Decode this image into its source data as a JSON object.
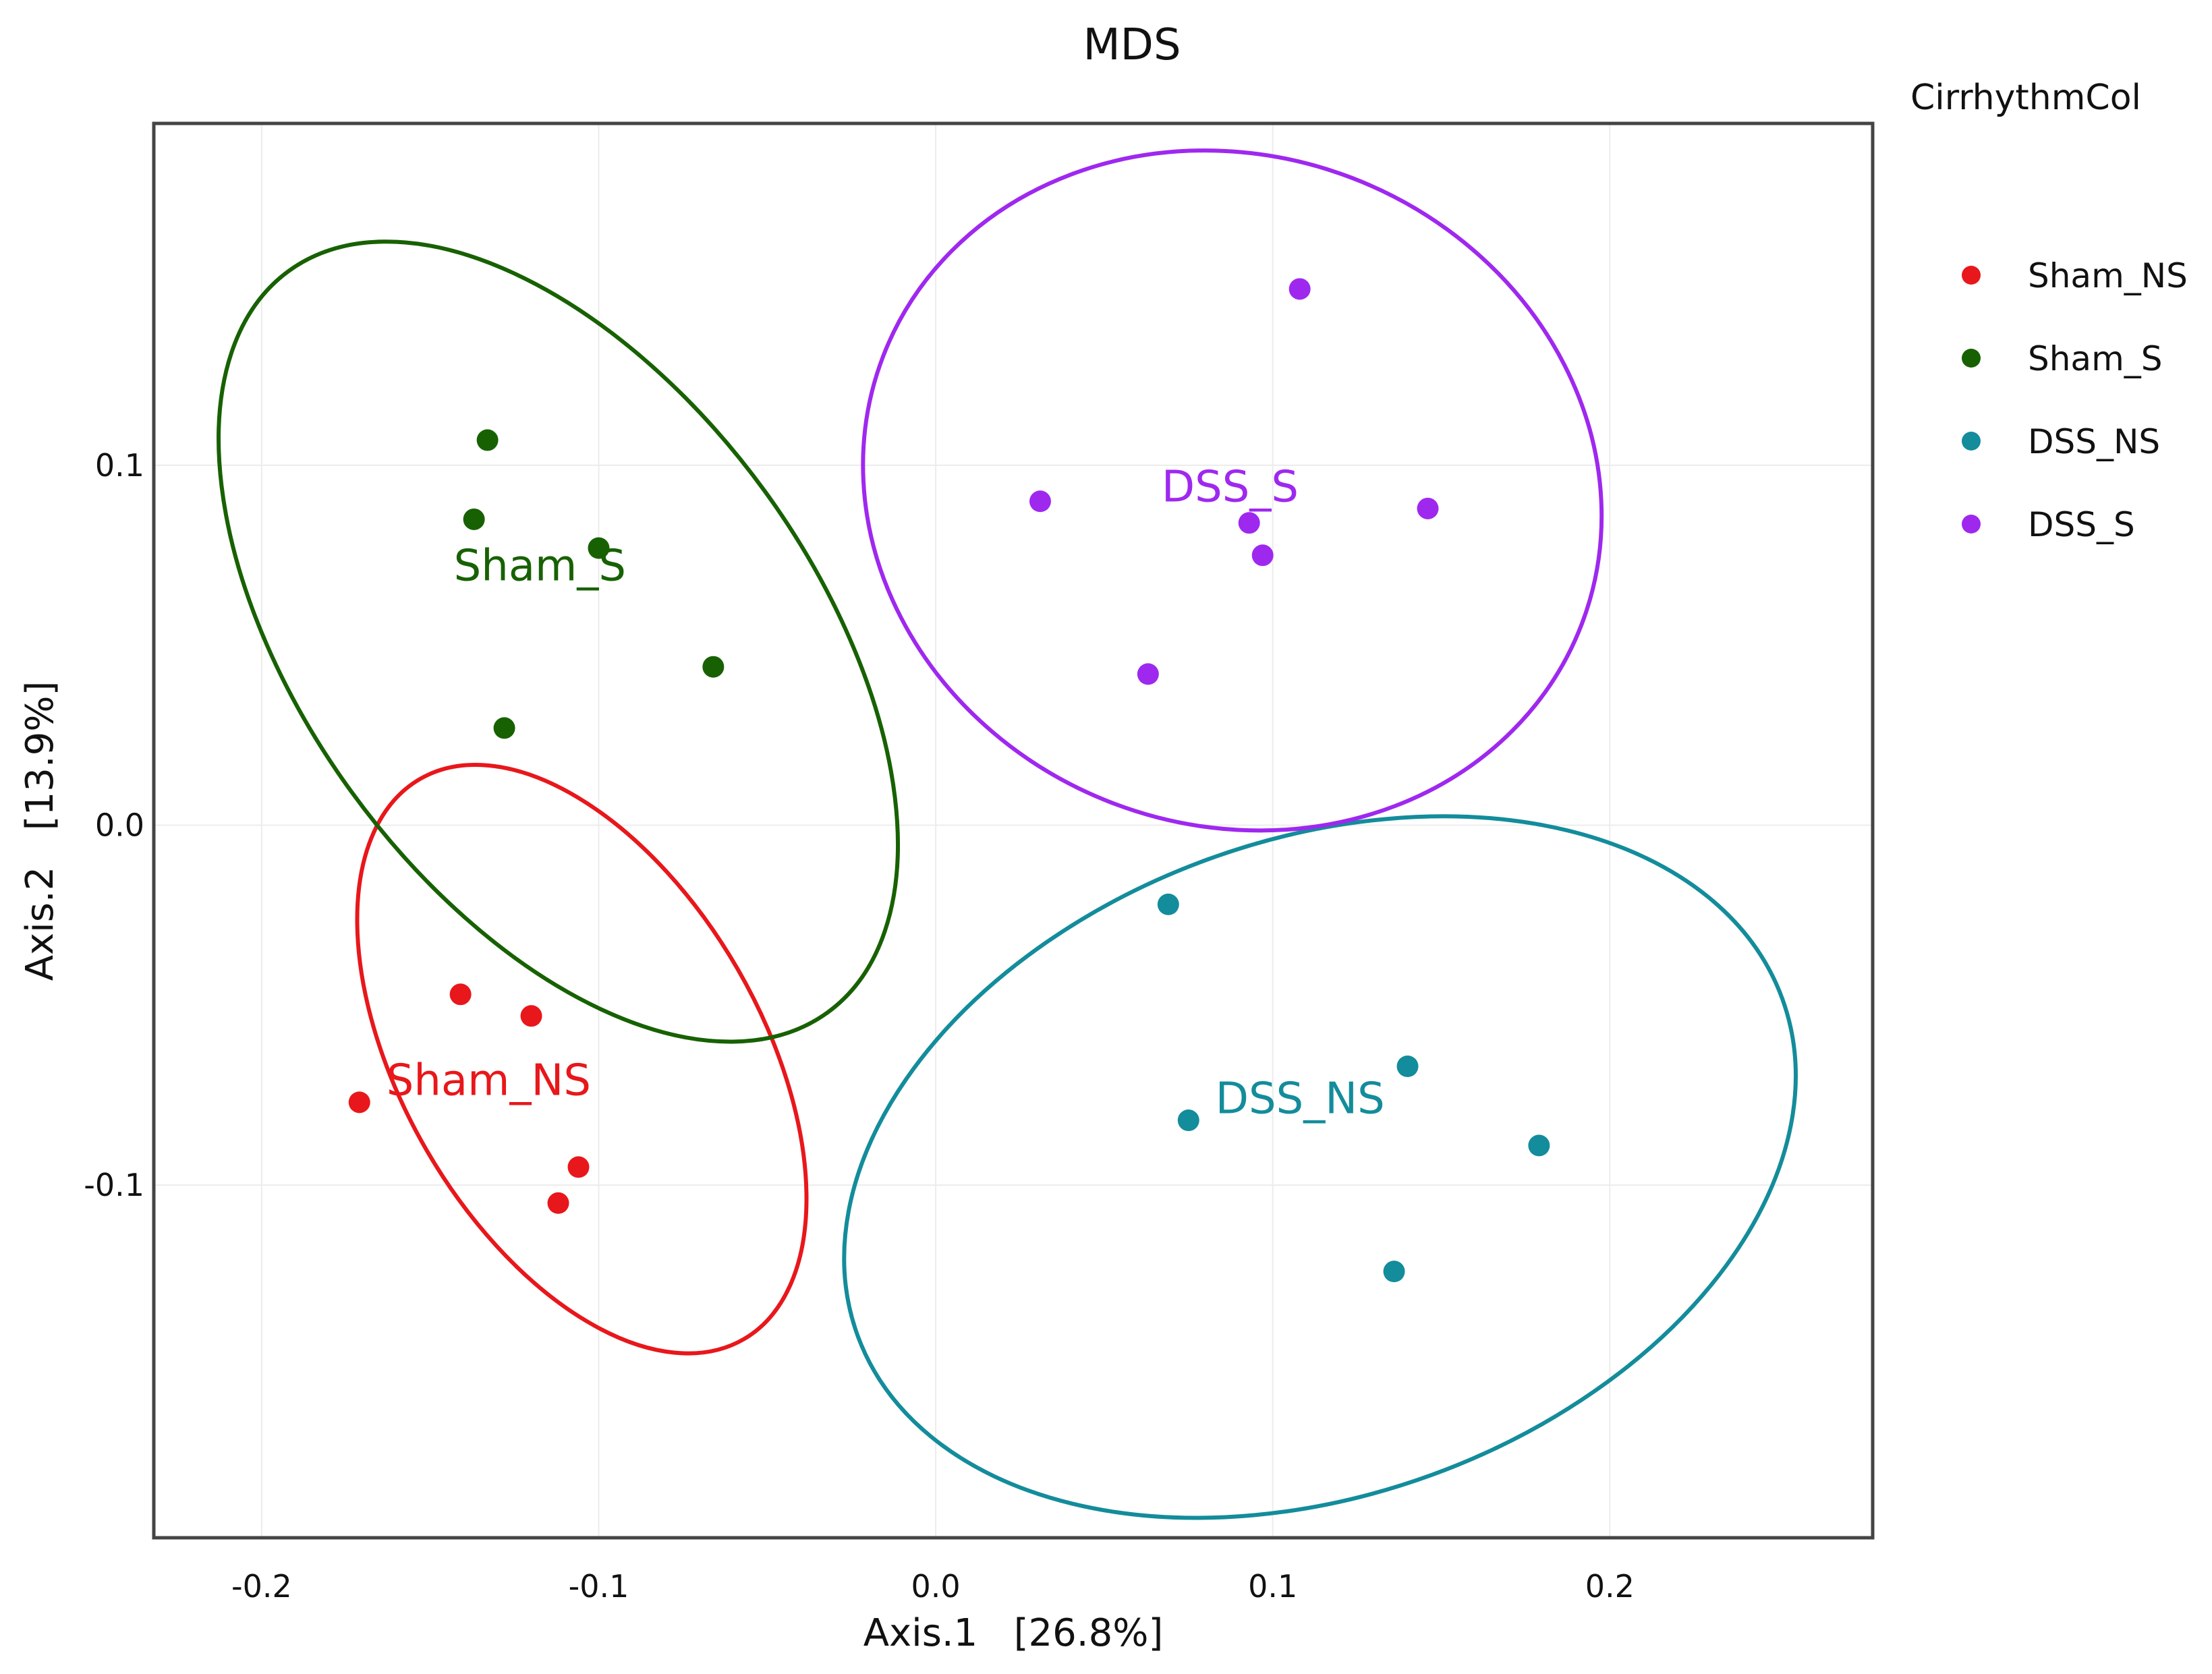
{
  "chart_data": {
    "type": "scatter",
    "title": "MDS",
    "xlabel": "Axis.1   [26.8%]",
    "ylabel": "Axis.2   [13.9%]",
    "xlim": [
      -0.232,
      0.278
    ],
    "ylim": [
      -0.198,
      0.195
    ],
    "xticks": [
      -0.2,
      -0.1,
      0.0,
      0.1,
      0.2
    ],
    "xtick_labels": [
      "-0.2",
      "-0.1",
      "0.0",
      "0.1",
      "0.2"
    ],
    "yticks": [
      -0.1,
      0.0,
      0.1
    ],
    "ytick_labels": [
      "-0.1",
      "0.0",
      "0.1"
    ],
    "grid": true,
    "legend": {
      "title": "CirrhythmCol",
      "position": "right",
      "entries": [
        "Sham_NS",
        "Sham_S",
        "DSS_NS",
        "DSS_S"
      ]
    },
    "series": [
      {
        "name": "Sham_NS",
        "color": "#e8171b",
        "label": "Sham_NS",
        "label_pos": [
          -0.163,
          -0.075
        ],
        "points": [
          {
            "x": -0.141,
            "y": -0.047
          },
          {
            "x": -0.12,
            "y": -0.053
          },
          {
            "x": -0.171,
            "y": -0.077
          },
          {
            "x": -0.106,
            "y": -0.095
          },
          {
            "x": -0.112,
            "y": -0.105
          }
        ],
        "ellipse": {
          "cx": -0.105,
          "cy": -0.065,
          "rx": 0.096,
          "ry": 0.05,
          "angle_deg": 120
        }
      },
      {
        "name": "Sham_S",
        "color": "#176102",
        "label": "Sham_S",
        "label_pos": [
          -0.143,
          0.068
        ],
        "points": [
          {
            "x": -0.133,
            "y": 0.107
          },
          {
            "x": -0.137,
            "y": 0.085
          },
          {
            "x": -0.1,
            "y": 0.077
          },
          {
            "x": -0.066,
            "y": 0.044
          },
          {
            "x": -0.128,
            "y": 0.027
          }
        ],
        "ellipse": {
          "cx": -0.112,
          "cy": 0.051,
          "rx": 0.136,
          "ry": 0.071,
          "angle_deg": 126
        }
      },
      {
        "name": "DSS_NS",
        "color": "#138c9b",
        "label": "DSS_NS",
        "label_pos": [
          0.083,
          -0.08
        ],
        "points": [
          {
            "x": 0.069,
            "y": -0.022
          },
          {
            "x": 0.14,
            "y": -0.067
          },
          {
            "x": 0.075,
            "y": -0.082
          },
          {
            "x": 0.179,
            "y": -0.089
          },
          {
            "x": 0.136,
            "y": -0.124
          }
        ],
        "ellipse": {
          "cx": 0.114,
          "cy": -0.095,
          "rx": 0.146,
          "ry": 0.091,
          "angle_deg": 20
        }
      },
      {
        "name": "DSS_S",
        "color": "#9f28ef",
        "label": "DSS_S",
        "label_pos": [
          0.067,
          0.09
        ],
        "points": [
          {
            "x": 0.108,
            "y": 0.149
          },
          {
            "x": 0.031,
            "y": 0.09
          },
          {
            "x": 0.146,
            "y": 0.088
          },
          {
            "x": 0.093,
            "y": 0.084
          },
          {
            "x": 0.097,
            "y": 0.075
          },
          {
            "x": 0.063,
            "y": 0.042
          }
        ],
        "ellipse": {
          "cx": 0.088,
          "cy": 0.093,
          "rx": 0.111,
          "ry": 0.093,
          "angle_deg": -21
        }
      }
    ]
  }
}
